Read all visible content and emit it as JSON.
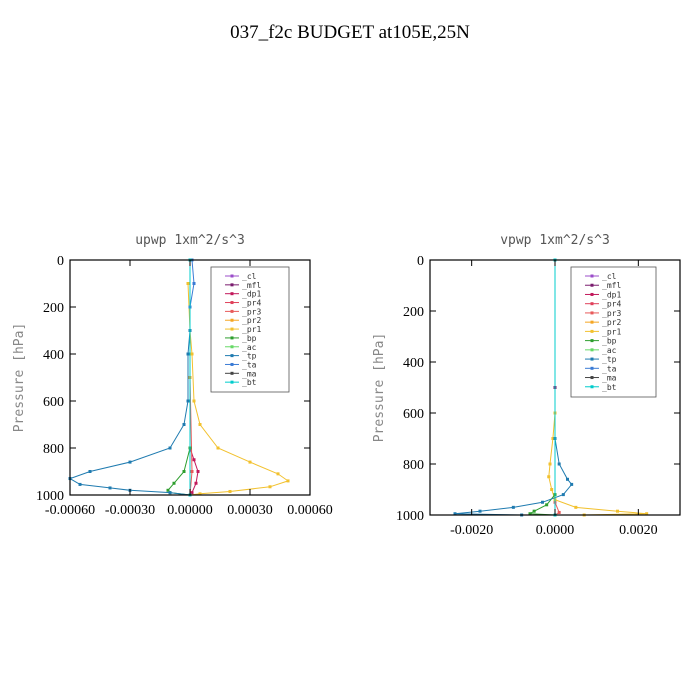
{
  "title": "037_f2c  BUDGET at105E,25N",
  "chart_data": [
    {
      "type": "line",
      "title": "upwp   1xm^2/s^3",
      "ylabel": "Pressure [hPa]",
      "y_axis": "pressure, inverted (0 at top, 1000 at bottom)",
      "ylim": [
        0,
        1000
      ],
      "xlim": [
        -0.0006,
        0.0006
      ],
      "xticks": [
        "-0.00060",
        "-0.00030",
        "0.00000",
        "0.00030",
        "0.00060"
      ],
      "yticks": [
        "0",
        "200",
        "400",
        "600",
        "800",
        "1000"
      ],
      "legend_position": "top-right",
      "series": [
        {
          "name": "_cl",
          "color": "#9b4dca",
          "points": [
            [
              0,
              0
            ],
            [
              0,
              500
            ],
            [
              0,
              1000
            ]
          ]
        },
        {
          "name": "_mfl",
          "color": "#7a1c6e",
          "points": [
            [
              0,
              0
            ],
            [
              0,
              500
            ],
            [
              0,
              1000
            ]
          ]
        },
        {
          "name": "_dp1",
          "color": "#c2185b",
          "points": [
            [
              0,
              0
            ],
            [
              0,
              500
            ],
            [
              0,
              800
            ],
            [
              2e-05,
              850
            ],
            [
              4e-05,
              900
            ],
            [
              3e-05,
              950
            ],
            [
              1e-05,
              990
            ],
            [
              0,
              1000
            ]
          ]
        },
        {
          "name": "_pr4",
          "color": "#e0405a",
          "points": [
            [
              0,
              0
            ],
            [
              0,
              500
            ],
            [
              0,
              1000
            ]
          ]
        },
        {
          "name": "_pr3",
          "color": "#e85a5a",
          "points": [
            [
              0,
              0
            ],
            [
              0,
              500
            ],
            [
              1e-05,
              900
            ],
            [
              0,
              1000
            ]
          ]
        },
        {
          "name": "_pr2",
          "color": "#f5a623",
          "points": [
            [
              0,
              0
            ],
            [
              0,
              500
            ],
            [
              0,
              1000
            ]
          ]
        },
        {
          "name": "_pr1",
          "color": "#f2c12e",
          "points": [
            [
              -1e-05,
              100
            ],
            [
              0,
              300
            ],
            [
              1e-05,
              400
            ],
            [
              2e-05,
              600
            ],
            [
              5e-05,
              700
            ],
            [
              0.00014,
              800
            ],
            [
              0.0003,
              860
            ],
            [
              0.00044,
              910
            ],
            [
              0.00049,
              940
            ],
            [
              0.0004,
              965
            ],
            [
              0.0002,
              985
            ],
            [
              5e-05,
              995
            ],
            [
              0,
              1000
            ]
          ]
        },
        {
          "name": "_bp",
          "color": "#2e9e2e",
          "points": [
            [
              0,
              0
            ],
            [
              0,
              800
            ],
            [
              -3e-05,
              900
            ],
            [
              -8e-05,
              950
            ],
            [
              -0.00011,
              980
            ],
            [
              -0.0001,
              990
            ],
            [
              0,
              1000
            ]
          ]
        },
        {
          "name": "_ac",
          "color": "#66d966",
          "points": [
            [
              0,
              0
            ],
            [
              0,
              1000
            ]
          ]
        },
        {
          "name": "_tp",
          "color": "#1f7bb0",
          "points": [
            [
              0,
              0
            ],
            [
              0,
              300
            ],
            [
              -1e-05,
              400
            ],
            [
              -1e-05,
              600
            ],
            [
              -3e-05,
              700
            ],
            [
              -0.0001,
              800
            ],
            [
              -0.0003,
              860
            ],
            [
              -0.0005,
              900
            ],
            [
              -0.0006,
              930
            ],
            [
              -0.00055,
              955
            ],
            [
              -0.0004,
              970
            ],
            [
              -0.0003,
              980
            ],
            [
              -0.0001,
              990
            ],
            [
              0,
              1000
            ]
          ]
        },
        {
          "name": "_ta",
          "color": "#3a7bd5",
          "points": [
            [
              1e-05,
              0
            ],
            [
              2e-05,
              100
            ],
            [
              0,
              200
            ],
            [
              0,
              1000
            ]
          ]
        },
        {
          "name": "_ma",
          "color": "#444444",
          "points": [
            [
              0,
              0
            ],
            [
              0,
              1000
            ]
          ]
        },
        {
          "name": "_bt",
          "color": "#00cccc",
          "points": [
            [
              0,
              0
            ],
            [
              0,
              1000
            ]
          ]
        }
      ]
    },
    {
      "type": "line",
      "title": "vpwp   1xm^2/s^3",
      "ylabel": "Pressure [hPa]",
      "y_axis": "pressure, inverted (0 at top, 1000 at bottom)",
      "ylim": [
        0,
        1000
      ],
      "xlim": [
        -0.003,
        0.003
      ],
      "xticks": [
        "-0.0020",
        "0.0000",
        "0.0020"
      ],
      "yticks": [
        "0",
        "200",
        "400",
        "600",
        "800",
        "1000"
      ],
      "legend_position": "top-right",
      "series": [
        {
          "name": "_cl",
          "color": "#9b4dca",
          "points": [
            [
              0,
              0
            ],
            [
              0,
              500
            ],
            [
              0,
              1000
            ]
          ]
        },
        {
          "name": "_mfl",
          "color": "#7a1c6e",
          "points": [
            [
              0,
              0
            ],
            [
              0,
              500
            ],
            [
              0,
              1000
            ]
          ]
        },
        {
          "name": "_dp1",
          "color": "#c2185b",
          "points": [
            [
              0,
              0
            ],
            [
              0,
              1000
            ]
          ]
        },
        {
          "name": "_pr4",
          "color": "#e0405a",
          "points": [
            [
              0,
              0
            ],
            [
              0,
              1000
            ]
          ]
        },
        {
          "name": "_pr3",
          "color": "#e85a5a",
          "points": [
            [
              0,
              0
            ],
            [
              0,
              950
            ],
            [
              0.0001,
              990
            ],
            [
              0,
              1000
            ]
          ]
        },
        {
          "name": "_pr2",
          "color": "#f5a623",
          "points": [
            [
              0,
              0
            ],
            [
              0,
              1000
            ]
          ]
        },
        {
          "name": "_pr1",
          "color": "#f2c12e",
          "points": [
            [
              0,
              0
            ],
            [
              0,
              600
            ],
            [
              -5e-05,
              700
            ],
            [
              -0.00012,
              800
            ],
            [
              -0.00015,
              850
            ],
            [
              -8e-05,
              900
            ],
            [
              0,
              940
            ],
            [
              0.0005,
              970
            ],
            [
              0.0015,
              985
            ],
            [
              0.0022,
              995
            ],
            [
              0.0007,
              1000
            ]
          ]
        },
        {
          "name": "_bp",
          "color": "#2e9e2e",
          "points": [
            [
              0,
              0
            ],
            [
              0,
              920
            ],
            [
              -0.0002,
              960
            ],
            [
              -0.0005,
              985
            ],
            [
              -0.0006,
              995
            ],
            [
              0,
              1000
            ]
          ]
        },
        {
          "name": "_ac",
          "color": "#66d966",
          "points": [
            [
              0,
              0
            ],
            [
              0,
              1000
            ]
          ]
        },
        {
          "name": "_tp",
          "color": "#1f7bb0",
          "points": [
            [
              0,
              0
            ],
            [
              0,
              700
            ],
            [
              0.0001,
              800
            ],
            [
              0.0003,
              860
            ],
            [
              0.0004,
              880
            ],
            [
              0.0002,
              920
            ],
            [
              -0.0003,
              950
            ],
            [
              -0.001,
              970
            ],
            [
              -0.0018,
              985
            ],
            [
              -0.0024,
              995
            ],
            [
              -0.0008,
              1000
            ]
          ]
        },
        {
          "name": "_ta",
          "color": "#3a7bd5",
          "points": [
            [
              0,
              0
            ],
            [
              0,
              1000
            ]
          ]
        },
        {
          "name": "_ma",
          "color": "#444444",
          "points": [
            [
              0,
              0
            ],
            [
              0,
              1000
            ]
          ]
        },
        {
          "name": "_bt",
          "color": "#00cccc",
          "points": [
            [
              0,
              0
            ],
            [
              0,
              1000
            ]
          ]
        }
      ]
    }
  ]
}
